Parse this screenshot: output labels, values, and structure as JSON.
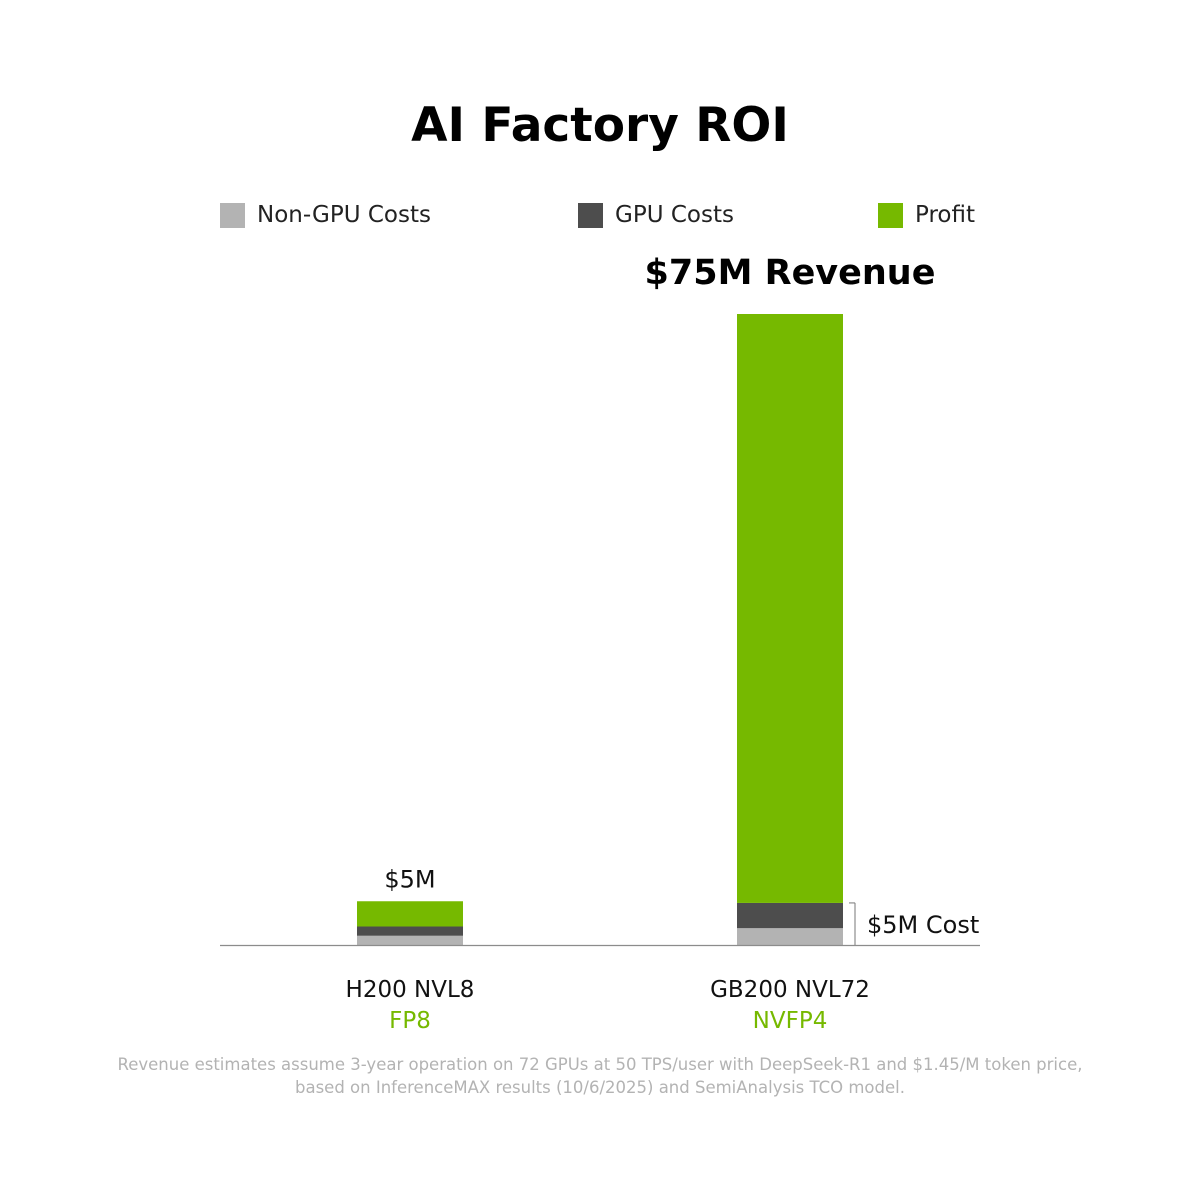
{
  "colors": {
    "non_gpu": "#b3b3b3",
    "gpu": "#4d4d4d",
    "profit": "#76b900",
    "axis": "#8c8c8c",
    "sub_label": "#76b900"
  },
  "legend": [
    {
      "label": "Non-GPU Costs",
      "color_key": "non_gpu"
    },
    {
      "label": "GPU Costs",
      "color_key": "gpu"
    },
    {
      "label": "Profit",
      "color_key": "profit"
    }
  ],
  "footnote": {
    "line1": "Revenue estimates assume 3-year operation on 72 GPUs at 50 TPS/user with DeepSeek-R1 and $1.45/M token price,",
    "line2": "based on InferenceMAX results (10/6/2025) and SemiAnalysis TCO model."
  },
  "chart_data": {
    "type": "bar",
    "stacked": true,
    "title": "AI Factory ROI",
    "categories": [
      "H200 NVL8",
      "GB200 NVL72"
    ],
    "category_sublabels": [
      "FP8",
      "NVFP4"
    ],
    "unit": "$M",
    "series": [
      {
        "name": "Non-GPU Costs",
        "values": [
          1.1,
          2.0
        ]
      },
      {
        "name": "GPU Costs",
        "values": [
          1.1,
          3.0
        ]
      },
      {
        "name": "Profit",
        "values": [
          3.0,
          70.0
        ]
      }
    ],
    "ylim": [
      0,
      75
    ],
    "grid": false,
    "legend_position": "top",
    "annotations": {
      "bar_top_labels": [
        "$5M",
        "$75M Revenue"
      ],
      "cost_bracket_label": "$5M Cost"
    }
  }
}
